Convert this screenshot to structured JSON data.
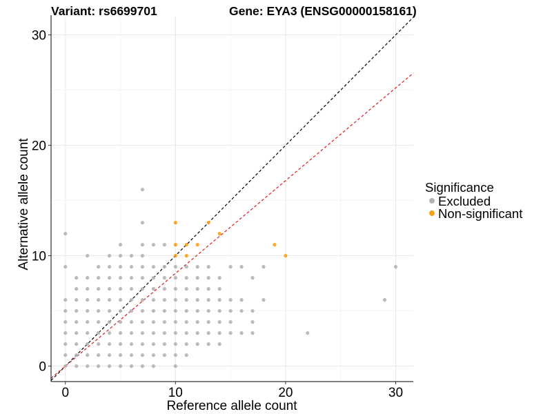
{
  "chart_data": {
    "type": "scatter",
    "title_left": "Variant: rs6699701",
    "title_right": "Gene: EYA3 (ENSG00000158161)",
    "xlabel": "Reference allele count",
    "ylabel": "Alternative allele count",
    "xlim": [
      -1.3,
      31.6
    ],
    "ylim": [
      -1.4,
      31.6
    ],
    "xticks": [
      0,
      10,
      20,
      30
    ],
    "yticks": [
      0,
      10,
      20,
      30
    ],
    "grid": true,
    "legend": {
      "title": "Significance",
      "placement": "right",
      "entries": [
        {
          "label": "Excluded",
          "color": "#b3b3b3"
        },
        {
          "label": "Non-significant",
          "color": "#f7a11a"
        }
      ]
    },
    "reference_lines": [
      {
        "slope": 1.0,
        "intercept": 0,
        "color": "#000000",
        "style": "dashed"
      },
      {
        "slope": 0.84,
        "intercept": 0,
        "color": "#e0191c",
        "style": "dashed"
      }
    ],
    "series": [
      {
        "name": "Excluded",
        "color": "#b3b3b3",
        "points": [
          [
            0,
            0
          ],
          [
            0,
            1
          ],
          [
            0,
            2
          ],
          [
            0,
            3
          ],
          [
            0,
            4
          ],
          [
            0,
            5
          ],
          [
            0,
            6
          ],
          [
            0,
            9
          ],
          [
            0,
            12
          ],
          [
            1,
            0
          ],
          [
            1,
            1
          ],
          [
            1,
            2
          ],
          [
            1,
            3
          ],
          [
            1,
            4
          ],
          [
            1,
            5
          ],
          [
            1,
            6
          ],
          [
            1,
            7
          ],
          [
            1,
            8
          ],
          [
            2,
            0
          ],
          [
            2,
            1
          ],
          [
            2,
            2
          ],
          [
            2,
            3
          ],
          [
            2,
            4
          ],
          [
            2,
            5
          ],
          [
            2,
            6
          ],
          [
            2,
            7
          ],
          [
            2,
            8
          ],
          [
            2,
            10
          ],
          [
            3,
            0
          ],
          [
            3,
            1
          ],
          [
            3,
            2
          ],
          [
            3,
            3
          ],
          [
            3,
            4
          ],
          [
            3,
            5
          ],
          [
            3,
            6
          ],
          [
            3,
            7
          ],
          [
            3,
            8
          ],
          [
            3,
            9
          ],
          [
            4,
            0
          ],
          [
            4,
            1
          ],
          [
            4,
            2
          ],
          [
            4,
            3
          ],
          [
            4,
            4
          ],
          [
            4,
            5
          ],
          [
            4,
            6
          ],
          [
            4,
            7
          ],
          [
            4,
            8
          ],
          [
            4,
            9
          ],
          [
            4,
            10
          ],
          [
            5,
            0
          ],
          [
            5,
            1
          ],
          [
            5,
            2
          ],
          [
            5,
            3
          ],
          [
            5,
            4
          ],
          [
            5,
            5
          ],
          [
            5,
            6
          ],
          [
            5,
            7
          ],
          [
            5,
            8
          ],
          [
            5,
            9
          ],
          [
            5,
            10
          ],
          [
            5,
            11
          ],
          [
            6,
            0
          ],
          [
            6,
            1
          ],
          [
            6,
            2
          ],
          [
            6,
            3
          ],
          [
            6,
            4
          ],
          [
            6,
            5
          ],
          [
            6,
            6
          ],
          [
            6,
            7
          ],
          [
            6,
            8
          ],
          [
            6,
            9
          ],
          [
            6,
            10
          ],
          [
            7,
            0
          ],
          [
            7,
            1
          ],
          [
            7,
            2
          ],
          [
            7,
            3
          ],
          [
            7,
            4
          ],
          [
            7,
            5
          ],
          [
            7,
            6
          ],
          [
            7,
            7
          ],
          [
            7,
            8
          ],
          [
            7,
            9
          ],
          [
            7,
            10
          ],
          [
            7,
            11
          ],
          [
            7,
            13
          ],
          [
            7,
            16
          ],
          [
            8,
            0
          ],
          [
            8,
            1
          ],
          [
            8,
            2
          ],
          [
            8,
            3
          ],
          [
            8,
            4
          ],
          [
            8,
            5
          ],
          [
            8,
            6
          ],
          [
            8,
            7
          ],
          [
            8,
            8
          ],
          [
            8,
            9
          ],
          [
            8,
            11
          ],
          [
            9,
            1
          ],
          [
            9,
            2
          ],
          [
            9,
            3
          ],
          [
            9,
            4
          ],
          [
            9,
            5
          ],
          [
            9,
            6
          ],
          [
            9,
            7
          ],
          [
            9,
            8
          ],
          [
            9,
            9
          ],
          [
            9,
            11
          ],
          [
            10,
            0
          ],
          [
            10,
            1
          ],
          [
            10,
            2
          ],
          [
            10,
            3
          ],
          [
            10,
            4
          ],
          [
            10,
            5
          ],
          [
            10,
            6
          ],
          [
            10,
            7
          ],
          [
            10,
            8
          ],
          [
            10,
            9
          ],
          [
            11,
            1
          ],
          [
            11,
            2
          ],
          [
            11,
            3
          ],
          [
            11,
            4
          ],
          [
            11,
            5
          ],
          [
            11,
            6
          ],
          [
            11,
            7
          ],
          [
            11,
            8
          ],
          [
            11,
            9
          ],
          [
            12,
            2
          ],
          [
            12,
            3
          ],
          [
            12,
            4
          ],
          [
            12,
            5
          ],
          [
            12,
            6
          ],
          [
            12,
            7
          ],
          [
            12,
            8
          ],
          [
            12,
            9
          ],
          [
            13,
            2
          ],
          [
            13,
            3
          ],
          [
            13,
            4
          ],
          [
            13,
            5
          ],
          [
            13,
            6
          ],
          [
            13,
            7
          ],
          [
            13,
            8
          ],
          [
            13,
            9
          ],
          [
            14,
            2
          ],
          [
            14,
            3
          ],
          [
            14,
            4
          ],
          [
            14,
            5
          ],
          [
            14,
            6
          ],
          [
            14,
            7
          ],
          [
            14,
            8
          ],
          [
            15,
            3
          ],
          [
            15,
            4
          ],
          [
            15,
            5
          ],
          [
            15,
            6
          ],
          [
            15,
            9
          ],
          [
            16,
            3
          ],
          [
            16,
            5
          ],
          [
            16,
            6
          ],
          [
            16,
            9
          ],
          [
            17,
            3
          ],
          [
            17,
            4
          ],
          [
            17,
            5
          ],
          [
            17,
            8
          ],
          [
            18,
            6
          ],
          [
            18,
            9
          ],
          [
            22,
            3
          ],
          [
            29,
            6
          ],
          [
            30,
            9
          ]
        ]
      },
      {
        "name": "Non-significant",
        "color": "#f7a11a",
        "points": [
          [
            10,
            13
          ],
          [
            10,
            11
          ],
          [
            10,
            10
          ],
          [
            11,
            11
          ],
          [
            11,
            10
          ],
          [
            12,
            11
          ],
          [
            13,
            13
          ],
          [
            14,
            12
          ],
          [
            19,
            11
          ],
          [
            20,
            10
          ]
        ]
      }
    ]
  }
}
